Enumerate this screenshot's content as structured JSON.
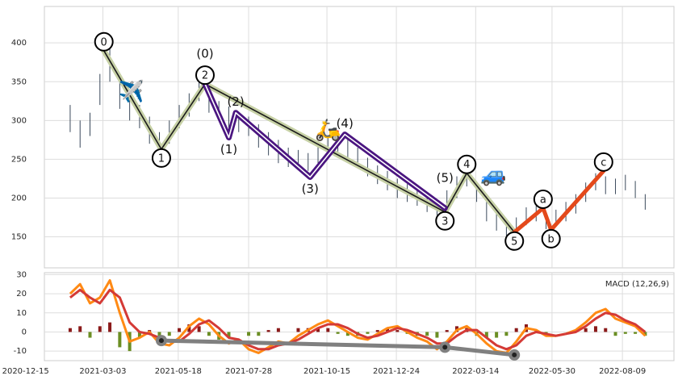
{
  "chart_data": [
    {
      "type": "range_bar",
      "color": "#3b4a5c",
      "grid": true,
      "xlim": [
        "2021-01-03",
        "2022-09-30"
      ],
      "ylim": [
        110,
        447
      ],
      "yticks": [
        150,
        200,
        250,
        300,
        350,
        400
      ],
      "x": [
        "2021-01-29",
        "2021-02-08",
        "2021-02-18",
        "2021-02-28",
        "2021-03-10",
        "2021-03-20",
        "2021-03-30",
        "2021-04-09",
        "2021-04-19",
        "2021-04-29",
        "2021-05-09",
        "2021-05-19",
        "2021-05-29",
        "2021-06-08",
        "2021-06-18",
        "2021-06-28",
        "2021-07-08",
        "2021-07-18",
        "2021-07-28",
        "2021-08-07",
        "2021-08-17",
        "2021-08-27",
        "2021-09-06",
        "2021-09-16",
        "2021-09-26",
        "2021-10-06",
        "2021-10-16",
        "2021-10-26",
        "2021-11-05",
        "2021-11-15",
        "2021-11-25",
        "2021-12-05",
        "2021-12-15",
        "2021-12-25",
        "2022-01-04",
        "2022-01-14",
        "2022-01-24",
        "2022-02-03",
        "2022-02-13",
        "2022-02-23",
        "2022-03-05",
        "2022-03-15",
        "2022-03-25",
        "2022-04-04",
        "2022-04-14",
        "2022-04-24",
        "2022-05-04",
        "2022-05-14",
        "2022-05-24",
        "2022-06-03",
        "2022-06-13",
        "2022-06-23",
        "2022-07-03",
        "2022-07-13",
        "2022-07-23",
        "2022-08-02",
        "2022-08-12",
        "2022-08-22",
        "2022-09-01"
      ],
      "high": [
        320,
        300,
        310,
        360,
        395,
        350,
        335,
        320,
        305,
        285,
        300,
        320,
        335,
        350,
        340,
        325,
        318,
        310,
        305,
        295,
        285,
        275,
        265,
        262,
        258,
        270,
        280,
        285,
        278,
        265,
        252,
        242,
        235,
        225,
        218,
        212,
        205,
        198,
        210,
        228,
        235,
        220,
        195,
        180,
        170,
        175,
        188,
        190,
        180,
        185,
        195,
        205,
        220,
        232,
        228,
        225,
        230,
        222,
        205
      ],
      "low": [
        285,
        265,
        280,
        320,
        350,
        315,
        300,
        290,
        270,
        258,
        270,
        290,
        305,
        325,
        310,
        300,
        290,
        285,
        280,
        265,
        255,
        245,
        240,
        238,
        235,
        245,
        255,
        260,
        252,
        240,
        228,
        218,
        210,
        200,
        195,
        190,
        182,
        178,
        185,
        200,
        215,
        195,
        170,
        158,
        150,
        155,
        165,
        170,
        160,
        165,
        170,
        180,
        195,
        210,
        205,
        205,
        210,
        200,
        185
      ],
      "waves": [
        {
          "color": "#c7d1a6",
          "inner_color": "#1b1b1b",
          "circled": true,
          "x": [
            "2021-03-04",
            "2021-05-01",
            "2021-06-14",
            "2022-02-11",
            "2022-03-05",
            "2022-04-22"
          ],
          "values": [
            390,
            263,
            347,
            182,
            232,
            156
          ],
          "labels": [
            "0",
            "1",
            "2",
            "3",
            "4",
            "5"
          ]
        },
        {
          "color": "#4a1580",
          "inner_color": "#ffffff",
          "circled": false,
          "x": [
            "2021-06-14",
            "2021-07-08",
            "2021-07-15",
            "2021-09-28",
            "2021-11-02",
            "2022-02-11"
          ],
          "values": [
            347,
            278,
            310,
            227,
            282,
            187
          ],
          "labels": [
            "(0)",
            "(1)",
            "(2)",
            "(3)",
            "(4)",
            "(5)"
          ]
        },
        {
          "color": "#e4491b",
          "circled": true,
          "x": [
            "2022-04-22",
            "2022-05-21",
            "2022-05-29",
            "2022-07-21"
          ],
          "values": [
            156,
            187,
            159,
            235
          ],
          "labels": [
            null,
            "a",
            "b",
            "c"
          ]
        }
      ],
      "icons": [
        {
          "text": "✈️",
          "x": "2021-04-01",
          "y": 336
        },
        {
          "text": "🛵",
          "x": "2021-10-16",
          "y": 287
        },
        {
          "text": "🚙",
          "x": "2022-04-01",
          "y": 229
        }
      ]
    },
    {
      "type": "macd",
      "legend_label": "MACD (12,26,9)",
      "grid": true,
      "xlim": [
        "2021-01-03",
        "2022-09-30"
      ],
      "xticks": [
        "2020-12-15",
        "2021-03-03",
        "2021-05-18",
        "2021-07-28",
        "2021-10-15",
        "2021-12-24",
        "2022-03-14",
        "2022-05-30",
        "2022-08-09"
      ],
      "ylim": [
        -15,
        31
      ],
      "yticks": [
        -10,
        0,
        10,
        20,
        30
      ],
      "series": [
        {
          "color": "#ff8a14",
          "values": [
            20,
            25,
            15,
            18,
            27,
            10,
            -5,
            -3,
            0,
            -6,
            -7,
            -3,
            3,
            7,
            4,
            -2,
            -6,
            -4,
            -9,
            -11,
            -8,
            -5,
            -6,
            -2,
            1,
            4,
            6,
            3,
            0,
            -3,
            -4,
            -1,
            2,
            3,
            0,
            -3,
            -5,
            -9,
            -5,
            1,
            3,
            -1,
            -6,
            -10,
            -11,
            -5,
            2,
            1,
            -2,
            -2,
            -1,
            1,
            5,
            10,
            12,
            7,
            5,
            3,
            -2
          ]
        },
        {
          "color": "#d43a36",
          "values": [
            18,
            22,
            18,
            15,
            22,
            18,
            5,
            0,
            -1,
            -3,
            -5,
            -5,
            -1,
            4,
            6,
            2,
            -3,
            -4,
            -7,
            -9,
            -9,
            -7,
            -6,
            -4,
            -1,
            2,
            4,
            4,
            2,
            -1,
            -3,
            -2,
            0,
            2,
            1,
            -1,
            -3,
            -6,
            -6,
            -2,
            1,
            1,
            -3,
            -7,
            -9,
            -7,
            -2,
            0,
            -1,
            -2,
            -1,
            0,
            3,
            7,
            10,
            9,
            6,
            4,
            0
          ]
        }
      ],
      "histogram": {
        "pos_color": "#8b1a1a",
        "neg_color": "#6b8e23",
        "values": [
          2,
          3,
          -3,
          3,
          5,
          -8,
          -10,
          -3,
          1,
          -3,
          -2,
          2,
          4,
          3,
          -2,
          -4,
          -3,
          0,
          -2,
          -2,
          1,
          2,
          0,
          2,
          2,
          2,
          2,
          -1,
          -2,
          -2,
          -1,
          1,
          2,
          1,
          -1,
          -2,
          -2,
          -3,
          1,
          3,
          2,
          -2,
          -3,
          -3,
          -2,
          2,
          4,
          1,
          -1,
          0,
          0,
          1,
          2,
          3,
          2,
          -2,
          -1,
          -1,
          -2
        ]
      },
      "divergence": {
        "color": "#808080",
        "x": [
          "2021-05-01",
          "2022-02-11",
          "2022-04-22"
        ],
        "values": [
          -4.5,
          -8,
          -12
        ]
      }
    }
  ]
}
